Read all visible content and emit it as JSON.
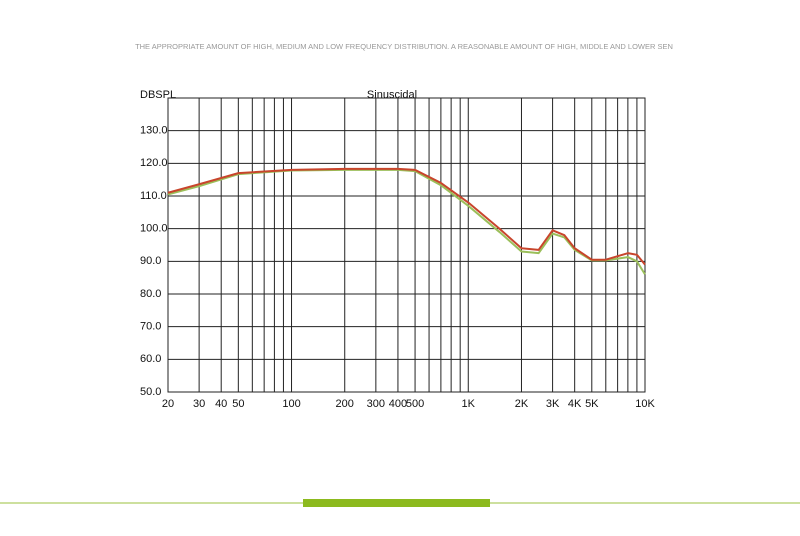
{
  "chart_data": {
    "type": "line",
    "title": "THE APPROPRIATE AMOUNT OF HIGH, MEDIUM AND LOW FREQUENCY DISTRIBUTION. A REASONABLE AMOUNT OF HIGH, MIDDLE AND LOWER SEN",
    "y_label": "DBSPL",
    "subtitle": "Sinuscidal",
    "x_scale": "log",
    "x": [
      20,
      30,
      50,
      100,
      200,
      400,
      500,
      700,
      1000,
      1500,
      2000,
      2500,
      3000,
      3500,
      4000,
      5000,
      6000,
      8000,
      9000,
      10000
    ],
    "series": [
      {
        "color": "#9bbf5a",
        "values": [
          110.5,
          113,
          116.7,
          117.8,
          118,
          118,
          117.6,
          113.3,
          107,
          99,
          93,
          92.5,
          98.5,
          97.3,
          93.5,
          90.3,
          90.3,
          91.3,
          90,
          86
        ]
      },
      {
        "color": "#c8452c",
        "values": [
          111,
          113.6,
          117,
          118,
          118.3,
          118.3,
          118,
          114,
          108,
          100,
          94,
          93.5,
          99.5,
          98,
          94,
          90.5,
          90.5,
          92.5,
          92,
          89
        ]
      }
    ],
    "xlim": [
      20,
      10000
    ],
    "xticks": [
      20,
      30,
      40,
      50,
      100,
      200,
      300,
      400,
      500,
      {
        "value": 1000,
        "label": "1K"
      },
      {
        "value": 2000,
        "label": "2K"
      },
      {
        "value": 3000,
        "label": "3K"
      },
      {
        "value": 4000,
        "label": "4K"
      },
      {
        "value": 5000,
        "label": "5K"
      },
      {
        "value": 10000,
        "label": "10K"
      }
    ],
    "x_minor_ticks": [
      60,
      70,
      80,
      90,
      600,
      700,
      800,
      900,
      6000,
      7000,
      8000,
      9000
    ],
    "ylim": [
      50,
      140
    ],
    "yticks": [
      {
        "value": 50,
        "label": "50.0"
      },
      {
        "value": 60,
        "label": "60.0"
      },
      {
        "value": 70,
        "label": "70.0"
      },
      {
        "value": 80,
        "label": "80.0"
      },
      {
        "value": 90,
        "label": "90.0"
      },
      {
        "value": 100,
        "label": "100.0"
      },
      {
        "value": 110,
        "label": "110.0"
      },
      {
        "value": 120,
        "label": "120.0"
      },
      {
        "value": 130,
        "label": "130.0"
      }
    ],
    "grid": true
  }
}
